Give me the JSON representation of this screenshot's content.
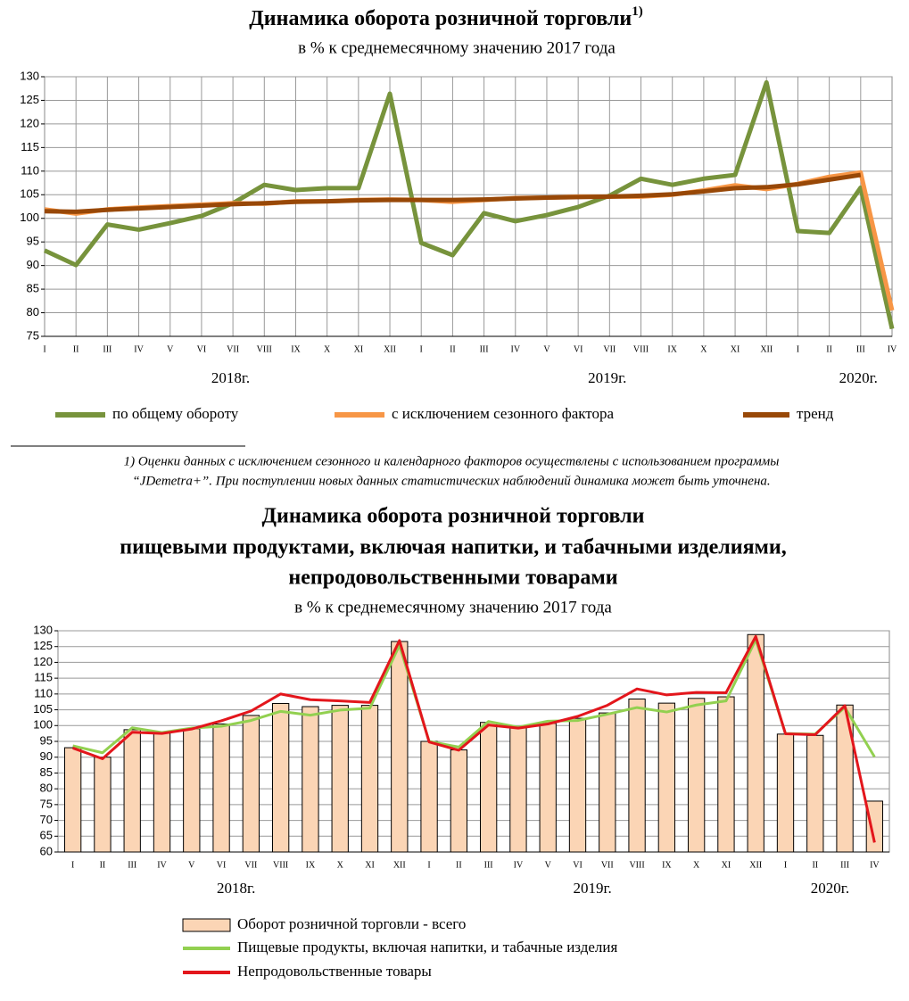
{
  "chart_data": [
    {
      "type": "line",
      "title": "Динамика оборота розничной торговли",
      "title_superscript": "1)",
      "subtitle": "в % к среднемесячному значению 2017 года",
      "categories": [
        "I",
        "II",
        "III",
        "IV",
        "V",
        "VI",
        "VII",
        "VIII",
        "IX",
        "X",
        "XI",
        "XII",
        "I",
        "II",
        "III",
        "IV",
        "V",
        "VI",
        "VII",
        "VIII",
        "IX",
        "X",
        "XI",
        "XII",
        "I",
        "II",
        "III",
        "IV"
      ],
      "groups": [
        {
          "label": "2018г.",
          "count": 12
        },
        {
          "label": "2019г.",
          "count": 12
        },
        {
          "label": "2020г.",
          "count": 4
        }
      ],
      "ylim": [
        75,
        130
      ],
      "yticks": [
        75,
        80,
        85,
        90,
        95,
        100,
        105,
        110,
        115,
        120,
        125,
        130
      ],
      "grid": true,
      "series": [
        {
          "name": "по общему обороту",
          "color": "#77933c",
          "values": [
            93.2,
            90.1,
            98.7,
            97.6,
            99.0,
            100.5,
            103.2,
            107.1,
            106.0,
            106.4,
            106.4,
            126.4,
            94.8,
            92.2,
            101.1,
            99.4,
            100.7,
            102.4,
            104.8,
            108.4,
            107.1,
            108.4,
            109.2,
            128.8,
            97.3,
            96.9,
            106.5,
            76.6
          ]
        },
        {
          "name": "с исключением сезонного фактора",
          "color": "#f79646",
          "values": [
            101.9,
            101.0,
            101.9,
            102.3,
            102.6,
            102.9,
            103.2,
            103.1,
            103.6,
            103.6,
            103.9,
            104.0,
            103.9,
            103.5,
            103.9,
            104.3,
            104.4,
            104.6,
            104.6,
            104.6,
            105.0,
            105.9,
            107.0,
            106.2,
            107.3,
            108.8,
            109.7,
            80.5
          ]
        },
        {
          "name": "тренд",
          "color": "#984807",
          "values": [
            101.5,
            101.4,
            101.8,
            102.1,
            102.4,
            102.7,
            103.0,
            103.2,
            103.5,
            103.6,
            103.8,
            103.9,
            103.9,
            103.9,
            104.0,
            104.2,
            104.4,
            104.5,
            104.6,
            104.8,
            105.1,
            105.7,
            106.4,
            106.6,
            107.2,
            108.2,
            109.2,
            null
          ]
        }
      ],
      "footnote": [
        "1) Оценки данных с исключением сезонного и календарного факторов осуществлены с использованием программы",
        "“JDemetra+”. При поступлении новых данных статистических наблюдений динамика может быть уточнена."
      ]
    },
    {
      "type": "bar",
      "title": [
        "Динамика оборота розничной торговли",
        "пищевыми продуктами, включая напитки, и табачными изделиями,",
        "непродовольственными товарами"
      ],
      "subtitle": "в % к среднемесячному значению 2017 года",
      "categories": [
        "I",
        "II",
        "III",
        "IV",
        "V",
        "VI",
        "VII",
        "VIII",
        "IX",
        "X",
        "XI",
        "XII",
        "I",
        "II",
        "III",
        "IV",
        "V",
        "VI",
        "VII",
        "VIII",
        "IX",
        "X",
        "XI",
        "XII",
        "I",
        "II",
        "III",
        "IV"
      ],
      "groups": [
        {
          "label": "2018г.",
          "count": 12
        },
        {
          "label": "2019г.",
          "count": 12
        },
        {
          "label": "2020г.",
          "count": 4
        }
      ],
      "ylim": [
        60,
        130
      ],
      "yticks": [
        60,
        65,
        70,
        75,
        80,
        85,
        90,
        95,
        100,
        105,
        110,
        115,
        120,
        125,
        130
      ],
      "grid": true,
      "series": [
        {
          "name": "Оборот розничной торговли - всего",
          "type": "bar",
          "color": "#fbd5b5",
          "values": [
            93.0,
            90.0,
            98.7,
            97.6,
            99.0,
            100.5,
            103.2,
            107.0,
            106.0,
            106.4,
            106.4,
            126.6,
            95.0,
            92.3,
            101.0,
            99.4,
            100.7,
            102.3,
            104.0,
            108.4,
            107.1,
            108.6,
            109.1,
            128.8,
            97.3,
            96.9,
            106.5,
            76.1
          ]
        },
        {
          "name": "Пищевые продукты, включая напитки, и табачные изделия",
          "type": "line",
          "color": "#92d050",
          "values": [
            93.6,
            91.4,
            99.3,
            97.8,
            99.2,
            99.8,
            101.6,
            104.5,
            103.3,
            104.9,
            105.5,
            125.4,
            95.0,
            93.2,
            101.3,
            99.5,
            101.4,
            101.6,
            103.6,
            105.7,
            104.3,
            106.5,
            107.8,
            127.2,
            97.5,
            97.3,
            105.8,
            90.1
          ]
        },
        {
          "name": "Непродовольственные товары",
          "type": "line",
          "color": "#e3161c",
          "values": [
            92.9,
            89.5,
            97.9,
            97.5,
            98.9,
            101.5,
            104.6,
            110.0,
            108.2,
            107.8,
            107.3,
            126.9,
            94.8,
            92.2,
            100.2,
            99.2,
            100.5,
            102.9,
            106.4,
            111.6,
            109.7,
            110.5,
            110.4,
            128.2,
            97.4,
            97.1,
            106.3,
            63.0
          ]
        }
      ]
    }
  ]
}
